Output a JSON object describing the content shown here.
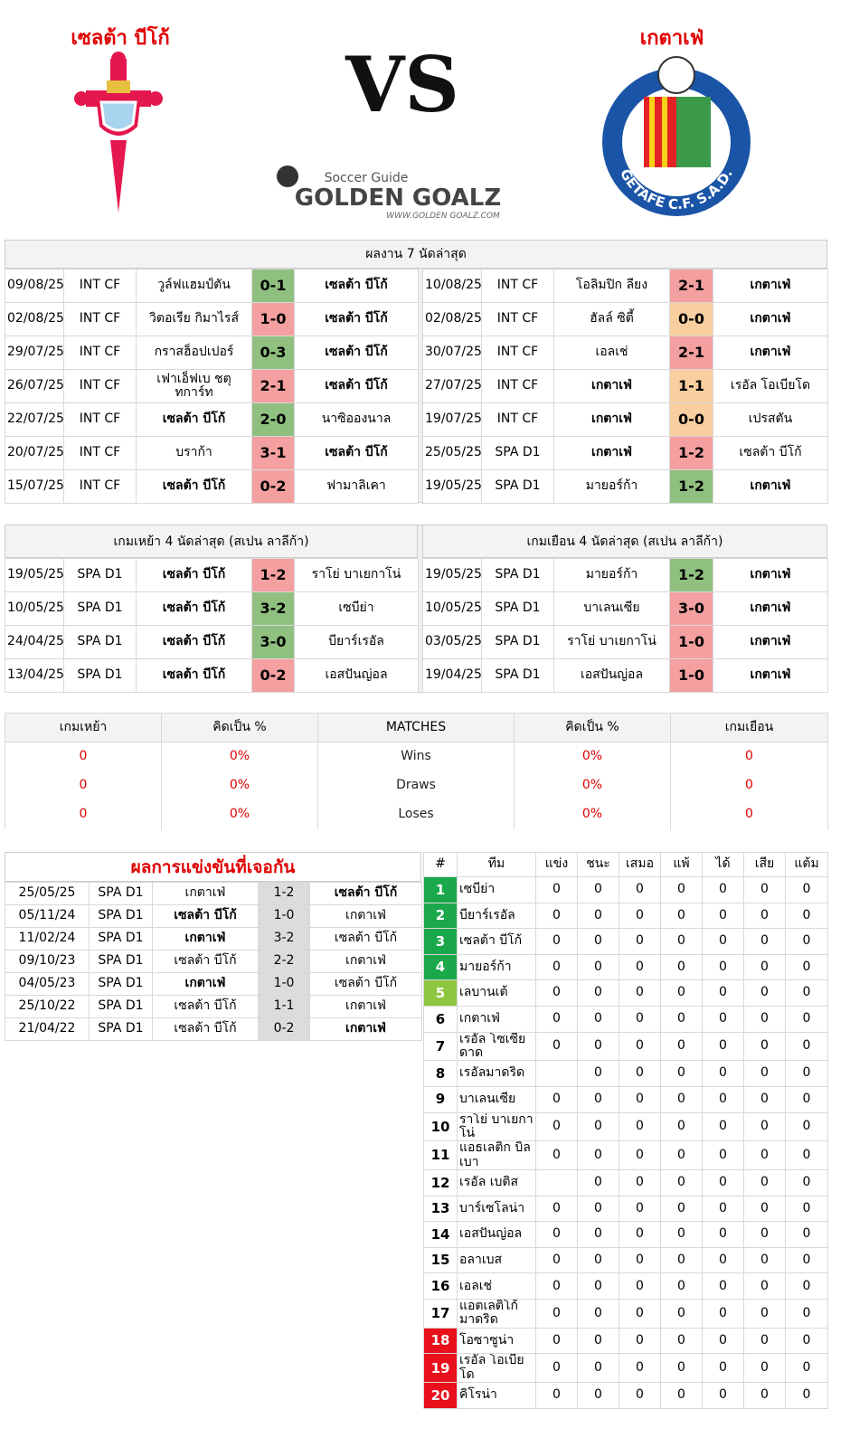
{
  "header": {
    "home_team": "เซลต้า บีโก้",
    "away_team": "เกตาเฟ่",
    "vs": "VS",
    "logo_tagline": "Soccer Guide",
    "logo_name": "GOLDEN GOALZ",
    "logo_url": "WWW.GOLDEN GOALZ.COM",
    "away_crest_text": "GETAFE C.F. S.A.D."
  },
  "last7": {
    "title": "ผลงาน 7 นัดล่าสุด",
    "home": [
      {
        "date": "09/08/25",
        "comp": "INT CF",
        "team1": "วูล์ฟแฮมป์ตัน",
        "score": "0-1",
        "team2": "เซลต้า บีโก้",
        "color": "#90c080",
        "bold": "team2"
      },
      {
        "date": "02/08/25",
        "comp": "INT CF",
        "team1": "วิตอเรีย กิมาไรส์",
        "score": "1-0",
        "team2": "เซลต้า บีโก้",
        "color": "#f4a0a0",
        "bold": "team2"
      },
      {
        "date": "29/07/25",
        "comp": "INT CF",
        "team1": "กราสฮ็อปเปอร์",
        "score": "0-3",
        "team2": "เซลต้า บีโก้",
        "color": "#90c080",
        "bold": "team2"
      },
      {
        "date": "26/07/25",
        "comp": "INT CF",
        "team1": "เฟาเอ็ฟเบ ชตุทการ์ท",
        "score": "2-1",
        "team2": "เซลต้า บีโก้",
        "color": "#f4a0a0",
        "bold": "team2"
      },
      {
        "date": "22/07/25",
        "comp": "INT CF",
        "team1": "เซลต้า บีโก้",
        "score": "2-0",
        "team2": "นาซิอองนาล",
        "color": "#90c080",
        "bold": "team1"
      },
      {
        "date": "20/07/25",
        "comp": "INT CF",
        "team1": "บราก้า",
        "score": "3-1",
        "team2": "เซลต้า บีโก้",
        "color": "#f4a0a0",
        "bold": "team2"
      },
      {
        "date": "15/07/25",
        "comp": "INT CF",
        "team1": "เซลต้า บีโก้",
        "score": "0-2",
        "team2": "ฟามาลิเคา",
        "color": "#f4a0a0",
        "bold": "team1"
      }
    ],
    "away": [
      {
        "date": "10/08/25",
        "comp": "INT CF",
        "team1": "โอลิมปิก ลียง",
        "score": "2-1",
        "team2": "เกตาเฟ่",
        "color": "#f4a0a0",
        "bold": "team2"
      },
      {
        "date": "02/08/25",
        "comp": "INT CF",
        "team1": "ฮัลล์ ซิตี้",
        "score": "0-0",
        "team2": "เกตาเฟ่",
        "color": "#f9cf9f",
        "bold": "team2"
      },
      {
        "date": "30/07/25",
        "comp": "INT CF",
        "team1": "เอลเช่",
        "score": "2-1",
        "team2": "เกตาเฟ่",
        "color": "#f4a0a0",
        "bold": "team2"
      },
      {
        "date": "27/07/25",
        "comp": "INT CF",
        "team1": "เกตาเฟ่",
        "score": "1-1",
        "team2": "เรอัล โอเบียโด",
        "color": "#f9cf9f",
        "bold": "team1"
      },
      {
        "date": "19/07/25",
        "comp": "INT CF",
        "team1": "เกตาเฟ่",
        "score": "0-0",
        "team2": "เปรสตัน",
        "color": "#f9cf9f",
        "bold": "team1"
      },
      {
        "date": "25/05/25",
        "comp": "SPA D1",
        "team1": "เกตาเฟ่",
        "score": "1-2",
        "team2": "เซลต้า บีโก้",
        "color": "#f4a0a0",
        "bold": "team1"
      },
      {
        "date": "19/05/25",
        "comp": "SPA D1",
        "team1": "มายอร์ก้า",
        "score": "1-2",
        "team2": "เกตาเฟ่",
        "color": "#90c080",
        "bold": "team2"
      }
    ]
  },
  "last4": {
    "home": {
      "title": "เกมเหย้า 4 นัดล่าสุด (สเปน ลาลีก้า)",
      "rows": [
        {
          "date": "19/05/25",
          "comp": "SPA D1",
          "team1": "เซลต้า บีโก้",
          "score": "1-2",
          "team2": "ราโย่ บาเยกาโน่",
          "color": "#f4a0a0",
          "bold": "team1"
        },
        {
          "date": "10/05/25",
          "comp": "SPA D1",
          "team1": "เซลต้า บีโก้",
          "score": "3-2",
          "team2": "เซบีย่า",
          "color": "#90c080",
          "bold": "team1"
        },
        {
          "date": "24/04/25",
          "comp": "SPA D1",
          "team1": "เซลต้า บีโก้",
          "score": "3-0",
          "team2": "บียาร์เรอัล",
          "color": "#90c080",
          "bold": "team1"
        },
        {
          "date": "13/04/25",
          "comp": "SPA D1",
          "team1": "เซลต้า บีโก้",
          "score": "0-2",
          "team2": "เอสปันญ่อล",
          "color": "#f4a0a0",
          "bold": "team1"
        }
      ]
    },
    "away": {
      "title": "เกมเยือน 4 นัดล่าสุด (สเปน ลาลีก้า)",
      "rows": [
        {
          "date": "19/05/25",
          "comp": "SPA D1",
          "team1": "มายอร์ก้า",
          "score": "1-2",
          "team2": "เกตาเฟ่",
          "color": "#90c080",
          "bold": "team2"
        },
        {
          "date": "10/05/25",
          "comp": "SPA D1",
          "team1": "บาเลนเซีย",
          "score": "3-0",
          "team2": "เกตาเฟ่",
          "color": "#f4a0a0",
          "bold": "team2"
        },
        {
          "date": "03/05/25",
          "comp": "SPA D1",
          "team1": "ราโย่ บาเยกาโน่",
          "score": "1-0",
          "team2": "เกตาเฟ่",
          "color": "#f4a0a0",
          "bold": "team2"
        },
        {
          "date": "19/04/25",
          "comp": "SPA D1",
          "team1": "เอสปันญ่อล",
          "score": "1-0",
          "team2": "เกตาเฟ่",
          "color": "#f4a0a0",
          "bold": "team2"
        }
      ]
    }
  },
  "summary": {
    "headers": [
      "เกมเหย้า",
      "คิดเป็น %",
      "MATCHES",
      "คิดเป็น %",
      "เกมเยือน"
    ],
    "rows": [
      [
        0,
        "0%",
        "Wins",
        "0%",
        0
      ],
      [
        0,
        "0%",
        "Draws",
        "0%",
        0
      ],
      [
        0,
        "0%",
        "Loses",
        "0%",
        0
      ]
    ]
  },
  "h2h": {
    "title": "ผลการแข่งขันที่เจอกัน",
    "rows": [
      {
        "date": "25/05/25",
        "comp": "SPA D1",
        "team1": "เกตาเฟ่",
        "score": "1-2",
        "team2": "เซลต้า บีโก้",
        "bold": "team2"
      },
      {
        "date": "05/11/24",
        "comp": "SPA D1",
        "team1": "เซลต้า บีโก้",
        "score": "1-0",
        "team2": "เกตาเฟ่",
        "bold": "team1"
      },
      {
        "date": "11/02/24",
        "comp": "SPA D1",
        "team1": "เกตาเฟ่",
        "score": "3-2",
        "team2": "เซลต้า บีโก้",
        "bold": "team1"
      },
      {
        "date": "09/10/23",
        "comp": "SPA D1",
        "team1": "เซลต้า บีโก้",
        "score": "2-2",
        "team2": "เกตาเฟ่"
      },
      {
        "date": "04/05/23",
        "comp": "SPA D1",
        "team1": "เกตาเฟ่",
        "score": "1-0",
        "team2": "เซลต้า บีโก้",
        "bold": "team1"
      },
      {
        "date": "25/10/22",
        "comp": "SPA D1",
        "team1": "เซลต้า บีโก้",
        "score": "1-1",
        "team2": "เกตาเฟ่"
      },
      {
        "date": "21/04/22",
        "comp": "SPA D1",
        "team1": "เซลต้า บีโก้",
        "score": "0-2",
        "team2": "เกตาเฟ่",
        "bold": "team2"
      }
    ]
  },
  "standings": {
    "headers": [
      "#",
      "ทีม",
      "แข่ง",
      "ชนะ",
      "เสมอ",
      "แพ้",
      "ได้",
      "เสีย",
      "แต้ม"
    ],
    "rows": [
      {
        "rank": 1,
        "team": "เซบีย่า",
        "color": "#1aa84a",
        "stats": [
          0,
          0,
          0,
          0,
          0,
          0,
          0
        ]
      },
      {
        "rank": 2,
        "team": "บียาร์เรอัล",
        "color": "#1aa84a",
        "stats": [
          0,
          0,
          0,
          0,
          0,
          0,
          0
        ]
      },
      {
        "rank": 3,
        "team": "เซลต้า บีโก้",
        "color": "#1aa84a",
        "stats": [
          0,
          0,
          0,
          0,
          0,
          0,
          0
        ]
      },
      {
        "rank": 4,
        "team": "มายอร์ก้า",
        "color": "#1aa84a",
        "stats": [
          0,
          0,
          0,
          0,
          0,
          0,
          0
        ]
      },
      {
        "rank": 5,
        "team": "เลบานเต้",
        "color": "#8dc63f",
        "stats": [
          0,
          0,
          0,
          0,
          0,
          0,
          0
        ]
      },
      {
        "rank": 6,
        "team": "เกตาเฟ่",
        "stats": [
          0,
          0,
          0,
          0,
          0,
          0,
          0
        ]
      },
      {
        "rank": 7,
        "team": "เรอัล โซเซียดาด",
        "stats": [
          0,
          0,
          0,
          0,
          0,
          0,
          0
        ]
      },
      {
        "rank": 8,
        "team": "เรอัลมาดริด",
        "stats": [
          null,
          0,
          0,
          0,
          0,
          0,
          0
        ]
      },
      {
        "rank": 9,
        "team": "บาเลนเซีย",
        "stats": [
          0,
          0,
          0,
          0,
          0,
          0,
          0
        ]
      },
      {
        "rank": 10,
        "team": "ราโย่ บาเยกาโน่",
        "stats": [
          0,
          0,
          0,
          0,
          0,
          0,
          0
        ]
      },
      {
        "rank": 11,
        "team": "แอธเลติก บิลเบา",
        "stats": [
          0,
          0,
          0,
          0,
          0,
          0,
          0
        ]
      },
      {
        "rank": 12,
        "team": "เรอัล เบติส",
        "stats": [
          null,
          0,
          0,
          0,
          0,
          0,
          0
        ]
      },
      {
        "rank": 13,
        "team": "บาร์เซโลน่า",
        "stats": [
          0,
          0,
          0,
          0,
          0,
          0,
          0
        ]
      },
      {
        "rank": 14,
        "team": "เอสปันญ่อล",
        "stats": [
          0,
          0,
          0,
          0,
          0,
          0,
          0
        ]
      },
      {
        "rank": 15,
        "team": "อลาเบส",
        "stats": [
          0,
          0,
          0,
          0,
          0,
          0,
          0
        ]
      },
      {
        "rank": 16,
        "team": "เอลเช่",
        "stats": [
          0,
          0,
          0,
          0,
          0,
          0,
          0
        ]
      },
      {
        "rank": 17,
        "team": "แอตเลติโก้ มาดริด",
        "stats": [
          0,
          0,
          0,
          0,
          0,
          0,
          0
        ]
      },
      {
        "rank": 18,
        "team": "โอซาซูน่า",
        "color": "#e8101a",
        "stats": [
          0,
          0,
          0,
          0,
          0,
          0,
          0
        ]
      },
      {
        "rank": 19,
        "team": "เรอัล โอเบียโด",
        "color": "#e8101a",
        "stats": [
          0,
          0,
          0,
          0,
          0,
          0,
          0
        ]
      },
      {
        "rank": 20,
        "team": "คิโรน่า",
        "color": "#e8101a",
        "stats": [
          0,
          0,
          0,
          0,
          0,
          0,
          0
        ]
      }
    ]
  }
}
